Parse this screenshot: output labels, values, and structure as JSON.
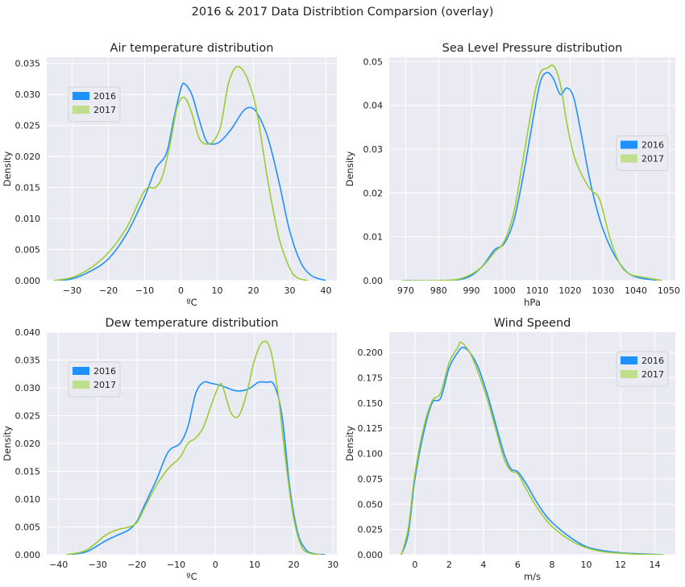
{
  "figure": {
    "suptitle": "2016 & 2017 Data Distribtion Comparsion (overlay)",
    "colors": {
      "background": "#eaeaf2",
      "grid": "#ffffff",
      "s2016": "#1e90ff",
      "s2017": "#9acd32",
      "s2017_fill": "#bfdf8c"
    }
  },
  "chart_data": [
    {
      "type": "line",
      "title": "Air temperature distribution",
      "xlabel": "ºC",
      "ylabel": "Density",
      "xlim": [
        -37,
        43
      ],
      "ylim": [
        0,
        0.036
      ],
      "xticks": [
        -30,
        -20,
        -10,
        0,
        10,
        20,
        30,
        40
      ],
      "xtick_labels": [
        "−30",
        "−20",
        "−10",
        "0",
        "10",
        "20",
        "30",
        "40"
      ],
      "yticks": [
        0,
        0.005,
        0.01,
        0.015,
        0.02,
        0.025,
        0.03,
        0.035
      ],
      "ytick_labels": [
        "0.000",
        "0.005",
        "0.010",
        "0.015",
        "0.020",
        "0.025",
        "0.030",
        "0.035"
      ],
      "legend_loc": "upper-left",
      "series": [
        {
          "name": "2016",
          "x": [
            -35,
            -30,
            -25,
            -20,
            -15,
            -10,
            -7,
            -4,
            -2,
            0,
            1,
            3,
            5,
            7,
            9,
            11,
            14,
            17,
            19,
            21,
            24,
            27,
            30,
            33,
            36,
            40
          ],
          "y": [
            0,
            0.0003,
            0.0015,
            0.0035,
            0.0075,
            0.0135,
            0.018,
            0.0205,
            0.026,
            0.031,
            0.0317,
            0.03,
            0.026,
            0.0225,
            0.022,
            0.0225,
            0.0245,
            0.0272,
            0.0279,
            0.027,
            0.023,
            0.016,
            0.008,
            0.003,
            0.0008,
            0
          ]
        },
        {
          "name": "2017",
          "x": [
            -35,
            -30,
            -25,
            -20,
            -15,
            -10,
            -7,
            -5,
            -3,
            -1,
            1,
            3,
            5,
            7,
            9,
            11,
            13,
            15,
            17,
            19,
            21,
            24,
            27,
            30,
            32,
            35
          ],
          "y": [
            0,
            0.0005,
            0.002,
            0.0045,
            0.0085,
            0.0145,
            0.015,
            0.017,
            0.022,
            0.028,
            0.0295,
            0.027,
            0.023,
            0.022,
            0.0225,
            0.025,
            0.0315,
            0.0343,
            0.034,
            0.0315,
            0.027,
            0.016,
            0.007,
            0.002,
            0.0005,
            0
          ]
        }
      ]
    },
    {
      "type": "line",
      "title": "Sea Level Pressure distribution",
      "xlabel": "hPa",
      "ylabel": "Density",
      "xlim": [
        965,
        1052
      ],
      "ylim": [
        0,
        0.051
      ],
      "xticks": [
        970,
        980,
        990,
        1000,
        1010,
        1020,
        1030,
        1040,
        1050
      ],
      "xtick_labels": [
        "970",
        "980",
        "990",
        "1000",
        "1010",
        "1020",
        "1030",
        "1040",
        "1050"
      ],
      "yticks": [
        0,
        0.01,
        0.02,
        0.03,
        0.04,
        0.05
      ],
      "ytick_labels": [
        "0.00",
        "0.01",
        "0.02",
        "0.03",
        "0.04",
        "0.05"
      ],
      "legend_loc": "center-right",
      "series": [
        {
          "name": "2016",
          "x": [
            969,
            980,
            988,
            993,
            997,
            1000,
            1003,
            1006,
            1009,
            1011,
            1013,
            1015,
            1017,
            1019,
            1021,
            1023,
            1026,
            1029,
            1032,
            1035,
            1038,
            1042,
            1048
          ],
          "y": [
            0,
            0,
            0.0005,
            0.003,
            0.007,
            0.0085,
            0.014,
            0.025,
            0.038,
            0.0455,
            0.0475,
            0.046,
            0.0425,
            0.044,
            0.042,
            0.035,
            0.023,
            0.014,
            0.008,
            0.004,
            0.0015,
            0.0005,
            0
          ]
        },
        {
          "name": "2017",
          "x": [
            969,
            980,
            987,
            993,
            997,
            1000,
            1003,
            1006,
            1009,
            1011,
            1013,
            1015,
            1017,
            1019,
            1021,
            1023,
            1026,
            1029,
            1032,
            1035,
            1038,
            1042,
            1048
          ],
          "y": [
            0,
            0,
            0.0005,
            0.003,
            0.0065,
            0.009,
            0.016,
            0.029,
            0.042,
            0.0475,
            0.0485,
            0.049,
            0.045,
            0.036,
            0.029,
            0.025,
            0.021,
            0.0185,
            0.01,
            0.004,
            0.0015,
            0.0008,
            0
          ]
        }
      ]
    },
    {
      "type": "line",
      "title": "Dew temperature distribution",
      "xlabel": "ºC",
      "ylabel": "Density",
      "xlim": [
        -43,
        31
      ],
      "ylim": [
        0,
        0.04
      ],
      "xticks": [
        -40,
        -30,
        -20,
        -10,
        0,
        10,
        20,
        30
      ],
      "xtick_labels": [
        "−40",
        "−30",
        "−20",
        "−10",
        "0",
        "10",
        "20",
        "30"
      ],
      "yticks": [
        0,
        0.005,
        0.01,
        0.015,
        0.02,
        0.025,
        0.03,
        0.035,
        0.04
      ],
      "ytick_labels": [
        "0.000",
        "0.005",
        "0.010",
        "0.015",
        "0.020",
        "0.025",
        "0.030",
        "0.035",
        "0.040"
      ],
      "legend_loc": "upper-left",
      "series": [
        {
          "name": "2016",
          "x": [
            -38,
            -33,
            -28,
            -25,
            -22,
            -20,
            -18,
            -15,
            -12,
            -9,
            -7,
            -5,
            -3,
            -1,
            1,
            3,
            5,
            7,
            9,
            11,
            13,
            15,
            17,
            19,
            21,
            23,
            25,
            28
          ],
          "y": [
            0,
            0.0005,
            0.0025,
            0.0035,
            0.0045,
            0.006,
            0.009,
            0.0135,
            0.0185,
            0.02,
            0.023,
            0.029,
            0.031,
            0.0308,
            0.0305,
            0.03,
            0.0295,
            0.0295,
            0.03,
            0.031,
            0.031,
            0.0305,
            0.025,
            0.012,
            0.004,
            0.001,
            0.0002,
            0
          ]
        },
        {
          "name": "2017",
          "x": [
            -38,
            -33,
            -28,
            -25,
            -22,
            -20,
            -18,
            -15,
            -12,
            -9,
            -7,
            -5,
            -3,
            -1,
            1,
            2,
            4,
            6,
            8,
            10,
            12,
            14,
            16,
            18,
            20,
            22,
            24,
            27
          ],
          "y": [
            0,
            0.0008,
            0.0035,
            0.0045,
            0.005,
            0.0058,
            0.0085,
            0.0125,
            0.0155,
            0.0175,
            0.02,
            0.021,
            0.023,
            0.027,
            0.0305,
            0.03,
            0.0255,
            0.025,
            0.029,
            0.035,
            0.0382,
            0.037,
            0.029,
            0.0165,
            0.0065,
            0.0015,
            0.0003,
            0
          ]
        }
      ]
    },
    {
      "type": "line",
      "title": "Wind Speend",
      "xlabel": "m/s",
      "ylabel": "Density",
      "xlim": [
        -1.5,
        15.2
      ],
      "ylim": [
        0,
        0.22
      ],
      "xticks": [
        0,
        2,
        4,
        6,
        8,
        10,
        12,
        14
      ],
      "xtick_labels": [
        "0",
        "2",
        "4",
        "6",
        "8",
        "10",
        "12",
        "14"
      ],
      "yticks": [
        0,
        0.025,
        0.05,
        0.075,
        0.1,
        0.125,
        0.15,
        0.175,
        0.2
      ],
      "ytick_labels": [
        "0.000",
        "0.025",
        "0.050",
        "0.075",
        "0.100",
        "0.125",
        "0.150",
        "0.175",
        "0.200"
      ],
      "legend_loc": "upper-right",
      "series": [
        {
          "name": "2016",
          "x": [
            -0.8,
            -0.4,
            0,
            0.5,
            1,
            1.5,
            2,
            2.5,
            2.8,
            3.2,
            3.7,
            4.2,
            4.7,
            5.2,
            5.6,
            6,
            6.5,
            7,
            7.5,
            8,
            9,
            10,
            11,
            12,
            13,
            14.5
          ],
          "y": [
            0,
            0.02,
            0.075,
            0.12,
            0.15,
            0.155,
            0.185,
            0.2,
            0.205,
            0.2,
            0.185,
            0.16,
            0.13,
            0.1,
            0.085,
            0.082,
            0.07,
            0.055,
            0.042,
            0.032,
            0.018,
            0.008,
            0.004,
            0.002,
            0.001,
            0
          ]
        },
        {
          "name": "2017",
          "x": [
            -0.8,
            -0.4,
            0,
            0.5,
            1,
            1.5,
            2,
            2.5,
            2.7,
            3.2,
            3.7,
            4.2,
            4.7,
            5.2,
            5.6,
            6,
            6.5,
            7,
            7.5,
            8,
            9,
            10,
            11,
            12,
            13,
            14.5
          ],
          "y": [
            0,
            0.025,
            0.08,
            0.125,
            0.152,
            0.16,
            0.19,
            0.205,
            0.21,
            0.2,
            0.18,
            0.155,
            0.125,
            0.095,
            0.083,
            0.08,
            0.065,
            0.05,
            0.038,
            0.028,
            0.015,
            0.007,
            0.003,
            0.0015,
            0.0005,
            0
          ]
        }
      ]
    }
  ]
}
